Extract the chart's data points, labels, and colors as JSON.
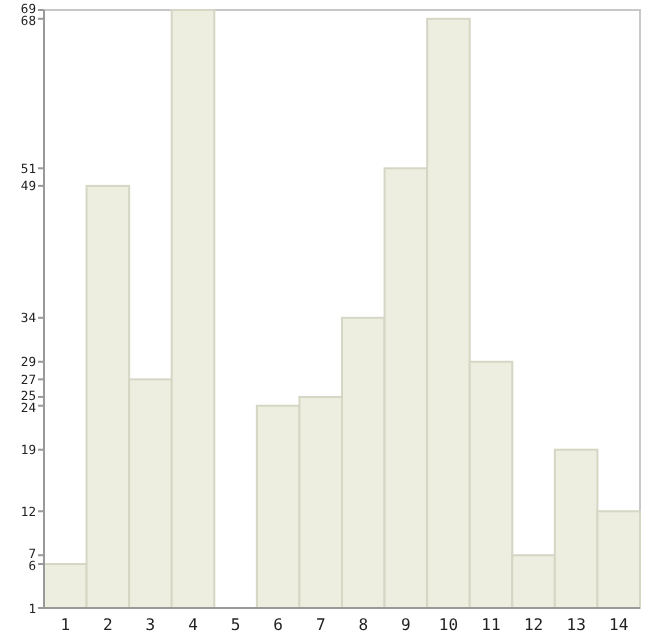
{
  "chart_data": {
    "type": "bar",
    "categories": [
      "1",
      "2",
      "3",
      "4",
      "5",
      "6",
      "7",
      "8",
      "9",
      "10",
      "11",
      "12",
      "13",
      "14"
    ],
    "values": [
      6,
      49,
      27,
      69,
      1,
      24,
      25,
      34,
      51,
      68,
      29,
      7,
      19,
      12
    ],
    "color": "#eeeee0",
    "ylim": [
      1,
      69
    ],
    "yticks": [
      1,
      6,
      7,
      12,
      19,
      24,
      25,
      27,
      29,
      34,
      49,
      51,
      68,
      69
    ]
  }
}
